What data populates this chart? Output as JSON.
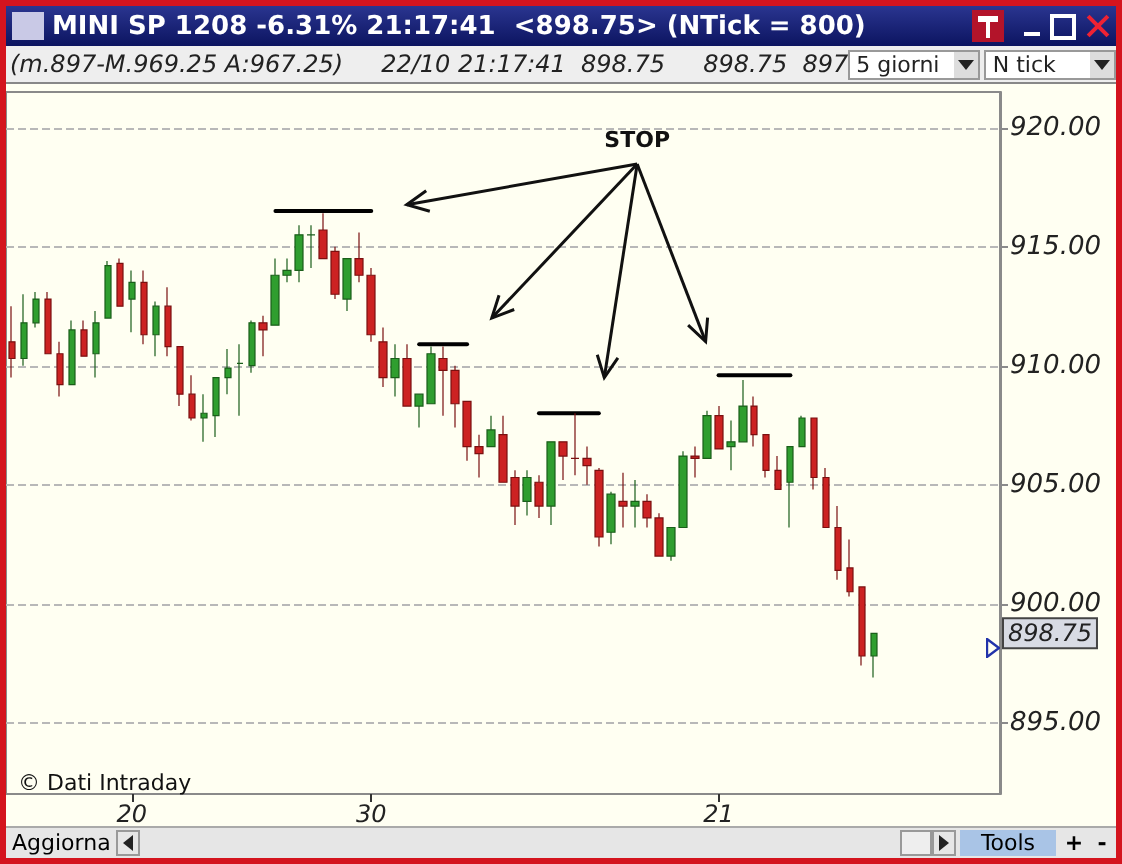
{
  "chart_data": {
    "type": "candlestick",
    "title": "MINI SP 1208 -6.31% 21:17:41  <898.75> (NTick = 800)",
    "subtitle": "(m.897-M.969.25 A:967.25)     22/10 21:17:41  898.75     898.75  897",
    "categories": [
      null,
      null,
      null,
      null,
      null,
      null,
      null,
      null,
      null,
      null,
      "20",
      null,
      null,
      null,
      null,
      null,
      null,
      null,
      null,
      null,
      null,
      null,
      null,
      null,
      null,
      null,
      null,
      null,
      null,
      null,
      "30",
      null,
      null,
      null,
      null,
      null,
      null,
      null,
      null,
      null,
      null,
      null,
      null,
      null,
      null,
      null,
      null,
      null,
      null,
      null,
      null,
      null,
      null,
      null,
      null,
      null,
      null,
      null,
      null,
      "21",
      null,
      null,
      null,
      null,
      null,
      null,
      null,
      null,
      null,
      null,
      null,
      null,
      null
    ],
    "ohlc": [
      [
        911.0,
        912.5,
        909.5,
        910.3
      ],
      [
        910.3,
        913.0,
        910.0,
        911.8
      ],
      [
        911.8,
        913.1,
        911.6,
        912.8
      ],
      [
        912.8,
        913.1,
        910.5,
        910.5
      ],
      [
        910.5,
        911.0,
        908.7,
        909.2
      ],
      [
        909.2,
        911.9,
        909.2,
        911.5
      ],
      [
        911.5,
        911.9,
        910.4,
        910.4
      ],
      [
        910.5,
        912.3,
        909.5,
        911.8
      ],
      [
        912.0,
        914.4,
        912.0,
        914.2
      ],
      [
        914.3,
        914.5,
        912.5,
        912.5
      ],
      [
        912.8,
        914.0,
        911.4,
        913.5
      ],
      [
        913.5,
        914.0,
        910.9,
        911.3
      ],
      [
        911.3,
        912.7,
        910.4,
        912.5
      ],
      [
        912.5,
        913.3,
        910.4,
        910.8
      ],
      [
        910.8,
        910.8,
        908.3,
        908.8
      ],
      [
        908.8,
        909.6,
        907.7,
        907.8
      ],
      [
        907.8,
        908.8,
        906.8,
        908.0
      ],
      [
        907.9,
        909.5,
        907.0,
        909.5
      ],
      [
        909.5,
        910.7,
        908.8,
        909.9
      ],
      [
        910.1,
        910.9,
        907.9,
        910.1
      ],
      [
        910.0,
        911.9,
        909.7,
        911.8
      ],
      [
        911.8,
        912.1,
        910.4,
        911.5
      ],
      [
        911.7,
        914.5,
        911.7,
        913.8
      ],
      [
        913.8,
        914.5,
        913.5,
        914.0
      ],
      [
        914.0,
        915.9,
        913.5,
        915.5
      ],
      [
        915.5,
        915.9,
        914.1,
        915.5
      ],
      [
        915.7,
        916.4,
        914.5,
        914.5
      ],
      [
        914.8,
        915.0,
        912.8,
        913.0
      ],
      [
        912.8,
        914.5,
        912.3,
        914.5
      ],
      [
        914.5,
        915.6,
        913.5,
        913.8
      ],
      [
        913.8,
        914.1,
        911.0,
        911.3
      ],
      [
        911.0,
        911.6,
        909.1,
        909.5
      ],
      [
        909.5,
        910.9,
        908.7,
        910.3
      ],
      [
        910.3,
        910.9,
        908.3,
        908.3
      ],
      [
        908.3,
        908.8,
        907.4,
        908.8
      ],
      [
        908.4,
        910.8,
        908.4,
        910.5
      ],
      [
        910.3,
        910.8,
        907.9,
        909.8
      ],
      [
        909.8,
        910.0,
        907.4,
        908.4
      ],
      [
        908.5,
        908.5,
        906.0,
        906.6
      ],
      [
        906.6,
        907.1,
        905.3,
        906.3
      ],
      [
        906.6,
        907.9,
        906.6,
        907.3
      ],
      [
        907.1,
        907.9,
        905.1,
        905.1
      ],
      [
        905.3,
        905.6,
        903.3,
        904.1
      ],
      [
        904.3,
        905.6,
        903.7,
        905.3
      ],
      [
        905.1,
        905.4,
        903.6,
        904.1
      ],
      [
        904.1,
        906.8,
        903.3,
        906.8
      ],
      [
        906.8,
        906.8,
        905.2,
        906.2
      ],
      [
        906.1,
        908.0,
        905.4,
        906.1
      ],
      [
        906.1,
        906.6,
        905.0,
        905.8
      ],
      [
        905.6,
        905.7,
        902.4,
        902.8
      ],
      [
        903.0,
        904.7,
        902.5,
        904.6
      ],
      [
        904.3,
        905.5,
        903.2,
        904.1
      ],
      [
        904.1,
        905.2,
        903.2,
        904.3
      ],
      [
        904.3,
        904.6,
        903.2,
        903.6
      ],
      [
        903.6,
        903.8,
        902.0,
        902.0
      ],
      [
        902.0,
        903.2,
        901.8,
        903.2
      ],
      [
        903.2,
        906.4,
        903.2,
        906.2
      ],
      [
        906.2,
        906.6,
        905.3,
        906.1
      ],
      [
        906.1,
        908.1,
        906.1,
        907.9
      ],
      [
        907.9,
        908.3,
        906.5,
        906.5
      ],
      [
        906.6,
        907.7,
        905.6,
        906.8
      ],
      [
        906.8,
        909.4,
        906.8,
        908.3
      ],
      [
        908.3,
        908.7,
        906.6,
        907.1
      ],
      [
        907.1,
        907.1,
        905.3,
        905.6
      ],
      [
        905.6,
        906.2,
        904.8,
        904.8
      ],
      [
        905.1,
        906.6,
        903.2,
        906.6
      ],
      [
        906.6,
        907.9,
        906.6,
        907.8
      ],
      [
        907.8,
        907.8,
        904.8,
        905.3
      ],
      [
        905.3,
        905.7,
        903.2,
        903.2
      ],
      [
        903.2,
        904.1,
        901.0,
        901.4
      ],
      [
        901.5,
        902.7,
        900.3,
        900.5
      ],
      [
        900.7,
        900.7,
        897.4,
        897.8
      ],
      [
        897.8,
        898.75,
        896.9,
        898.75
      ]
    ],
    "series": [
      {
        "type": "line",
        "color": "#000000",
        "values": [
          null,
          null,
          null,
          null,
          null,
          null,
          null,
          null,
          null,
          null,
          null,
          null,
          null,
          null,
          null,
          null,
          null,
          null,
          null,
          null,
          null,
          null,
          916.5,
          916.5,
          916.5,
          916.5,
          916.5,
          916.5,
          916.5,
          916.5,
          916.5,
          null,
          null,
          null,
          null,
          null,
          null,
          null,
          null,
          null,
          null,
          null,
          null,
          null,
          null,
          null,
          null,
          null,
          null,
          null,
          null,
          null,
          null,
          null,
          null,
          null,
          null,
          null,
          null,
          null,
          null,
          null,
          null,
          null,
          null,
          null,
          null,
          null,
          null,
          null,
          null,
          null,
          null
        ]
      },
      {
        "type": "line",
        "color": "#000000",
        "values": [
          null,
          null,
          null,
          null,
          null,
          null,
          null,
          null,
          null,
          null,
          null,
          null,
          null,
          null,
          null,
          null,
          null,
          null,
          null,
          null,
          null,
          null,
          null,
          null,
          null,
          null,
          null,
          null,
          null,
          null,
          null,
          null,
          null,
          null,
          910.9,
          910.9,
          910.9,
          910.9,
          910.9,
          null,
          null,
          null,
          null,
          null,
          null,
          null,
          null,
          null,
          null,
          null,
          null,
          null,
          null,
          null,
          null,
          null,
          null,
          null,
          null,
          null,
          null,
          null,
          null,
          null,
          null,
          null,
          null,
          null,
          null,
          null,
          null,
          null,
          null
        ]
      },
      {
        "type": "line",
        "color": "#000000",
        "values": [
          null,
          null,
          null,
          null,
          null,
          null,
          null,
          null,
          null,
          null,
          null,
          null,
          null,
          null,
          null,
          null,
          null,
          null,
          null,
          null,
          null,
          null,
          null,
          null,
          null,
          null,
          null,
          null,
          null,
          null,
          null,
          null,
          null,
          null,
          null,
          null,
          null,
          null,
          null,
          null,
          null,
          null,
          null,
          null,
          908.0,
          908.0,
          908.0,
          908.0,
          908.0,
          908.0,
          null,
          null,
          null,
          null,
          null,
          null,
          null,
          null,
          null,
          null,
          null,
          null,
          null,
          null,
          null,
          null,
          null,
          null,
          null,
          null,
          null,
          null,
          null
        ]
      },
      {
        "type": "line",
        "color": "#000000",
        "values": [
          null,
          null,
          null,
          null,
          null,
          null,
          null,
          null,
          null,
          null,
          null,
          null,
          null,
          null,
          null,
          null,
          null,
          null,
          null,
          null,
          null,
          null,
          null,
          null,
          null,
          null,
          null,
          null,
          null,
          null,
          null,
          null,
          null,
          null,
          null,
          null,
          null,
          null,
          null,
          null,
          null,
          null,
          null,
          null,
          null,
          null,
          null,
          null,
          null,
          null,
          null,
          null,
          null,
          null,
          null,
          null,
          null,
          null,
          null,
          909.6,
          909.6,
          909.6,
          909.6,
          909.6,
          909.6,
          909.6,
          null,
          null,
          null,
          null,
          null,
          null,
          null
        ]
      }
    ],
    "marker": "none",
    "line_style": "solid",
    "ylim": [
      892,
      921.5
    ],
    "yticks": [
      {
        "value": 895,
        "label": "895.00"
      },
      {
        "value": 900,
        "label": "900.00"
      },
      {
        "value": 905,
        "label": "905.00"
      },
      {
        "value": 910,
        "label": "910.00"
      },
      {
        "value": 915,
        "label": "915.00"
      },
      {
        "value": 920,
        "label": "920.00"
      }
    ],
    "grid": "y",
    "annotations": [
      "5 giorni",
      "N tick",
      "© Dati Intraday",
      "Aggiorna",
      "Tools",
      "+",
      "-",
      "STOP",
      "898.75"
    ]
  }
}
